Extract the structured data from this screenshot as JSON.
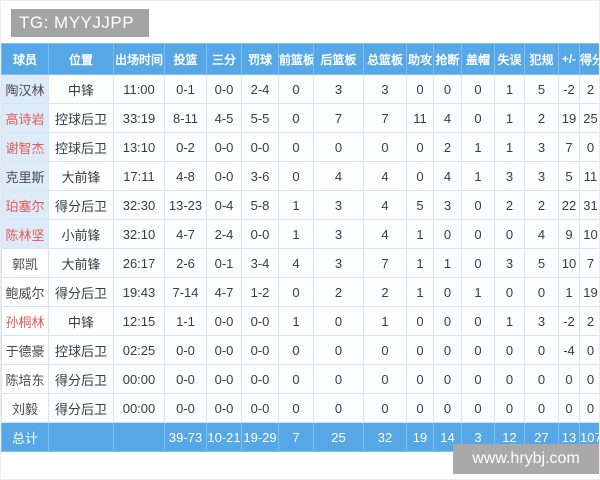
{
  "title": "TG: MYYJJPP",
  "watermark": "www.hrybj.com",
  "colors": {
    "header_blue": "#55a7e5",
    "red_name": "#e05a5a",
    "starter_name_cell": "#dcebf7",
    "title_gray": "#a4a4a4",
    "watermark_gray": "#a9a9a9"
  },
  "table": {
    "columns": [
      "球员",
      "位置",
      "出场时间",
      "投篮",
      "三分",
      "罚球",
      "前篮板",
      "后篮板",
      "总篮板",
      "助攻",
      "抢断",
      "盖帽",
      "失误",
      "犯规",
      "+/-",
      "得分"
    ],
    "players": [
      {
        "name": "陶汉林",
        "red": false,
        "starter": true,
        "stats": [
          "中锋",
          "11:00",
          "0-1",
          "0-0",
          "2-4",
          "0",
          "3",
          "3",
          "0",
          "0",
          "0",
          "1",
          "5",
          "-2",
          "2"
        ]
      },
      {
        "name": "高诗岩",
        "red": true,
        "starter": true,
        "stats": [
          "控球后卫",
          "33:19",
          "8-11",
          "4-5",
          "5-5",
          "0",
          "7",
          "7",
          "11",
          "4",
          "0",
          "1",
          "2",
          "19",
          "25"
        ]
      },
      {
        "name": "谢智杰",
        "red": true,
        "starter": true,
        "stats": [
          "控球后卫",
          "13:10",
          "0-2",
          "0-0",
          "0-0",
          "0",
          "0",
          "0",
          "0",
          "2",
          "1",
          "1",
          "3",
          "7",
          "0"
        ]
      },
      {
        "name": "克里斯",
        "red": false,
        "starter": true,
        "stats": [
          "大前锋",
          "17:11",
          "4-8",
          "0-0",
          "3-6",
          "0",
          "4",
          "4",
          "0",
          "4",
          "1",
          "3",
          "3",
          "5",
          "11"
        ]
      },
      {
        "name": "珀塞尔",
        "red": true,
        "starter": true,
        "stats": [
          "得分后卫",
          "32:30",
          "13-23",
          "0-4",
          "5-8",
          "1",
          "3",
          "4",
          "5",
          "3",
          "0",
          "2",
          "2",
          "22",
          "31"
        ]
      },
      {
        "name": "陈林坚",
        "red": true,
        "starter": true,
        "stats": [
          "小前锋",
          "32:10",
          "4-7",
          "2-4",
          "0-0",
          "1",
          "3",
          "4",
          "1",
          "0",
          "0",
          "0",
          "4",
          "9",
          "10"
        ]
      },
      {
        "name": "郭凯",
        "red": false,
        "starter": false,
        "stats": [
          "大前锋",
          "26:17",
          "2-6",
          "0-1",
          "3-4",
          "4",
          "3",
          "7",
          "1",
          "1",
          "0",
          "3",
          "5",
          "10",
          "7"
        ]
      },
      {
        "name": "鲍威尔",
        "red": false,
        "starter": false,
        "stats": [
          "得分后卫",
          "19:43",
          "7-14",
          "4-7",
          "1-2",
          "0",
          "2",
          "2",
          "1",
          "0",
          "1",
          "0",
          "0",
          "1",
          "19"
        ]
      },
      {
        "name": "孙桐林",
        "red": true,
        "starter": false,
        "stats": [
          "中锋",
          "12:15",
          "1-1",
          "0-0",
          "0-0",
          "1",
          "0",
          "1",
          "0",
          "0",
          "0",
          "1",
          "3",
          "-2",
          "2"
        ]
      },
      {
        "name": "于德豪",
        "red": false,
        "starter": false,
        "stats": [
          "控球后卫",
          "02:25",
          "0-0",
          "0-0",
          "0-0",
          "0",
          "0",
          "0",
          "0",
          "0",
          "0",
          "0",
          "0",
          "-4",
          "0"
        ]
      },
      {
        "name": "陈培东",
        "red": false,
        "starter": false,
        "stats": [
          "得分后卫",
          "00:00",
          "0-0",
          "0-0",
          "0-0",
          "0",
          "0",
          "0",
          "0",
          "0",
          "0",
          "0",
          "0",
          "0",
          "0"
        ]
      },
      {
        "name": "刘毅",
        "red": false,
        "starter": false,
        "stats": [
          "得分后卫",
          "00:00",
          "0-0",
          "0-0",
          "0-0",
          "0",
          "0",
          "0",
          "0",
          "0",
          "0",
          "0",
          "0",
          "0",
          "0"
        ]
      }
    ],
    "total": {
      "label": "总计",
      "stats": [
        "",
        "",
        "39-73",
        "10-21",
        "19-29",
        "7",
        "25",
        "32",
        "19",
        "14",
        "3",
        "12",
        "27",
        "13",
        "107"
      ]
    }
  }
}
